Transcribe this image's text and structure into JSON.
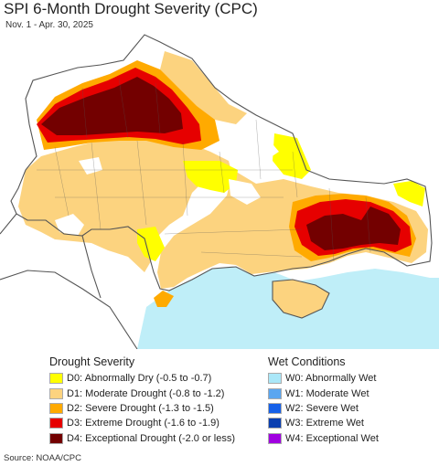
{
  "header": {
    "title": "SPI 6-Month Drought Severity (CPC)",
    "subtitle": "Nov. 1 - Apr. 30, 2025"
  },
  "map": {
    "colors": {
      "sea": "#bfeef8",
      "land_outside": "#ffffff",
      "none": "#ffffff",
      "D0": "#ffff00",
      "D1": "#fcd37f",
      "D2": "#ffaa00",
      "D3": "#e60000",
      "D4": "#730000",
      "border": "#555555"
    }
  },
  "legend": {
    "drought": {
      "heading": "Drought Severity",
      "items": [
        {
          "label": "D0: Abnormally Dry (-0.5 to -0.7)",
          "color": "#ffff00"
        },
        {
          "label": "D1: Moderate Drought (-0.8 to -1.2)",
          "color": "#fcd37f"
        },
        {
          "label": "D2: Severe Drought (-1.3 to -1.5)",
          "color": "#ffaa00"
        },
        {
          "label": "D3: Extreme Drought (-1.6 to -1.9)",
          "color": "#e60000"
        },
        {
          "label": "D4: Exceptional Drought (-2.0 or less)",
          "color": "#730000"
        }
      ]
    },
    "wet": {
      "heading": "Wet Conditions",
      "items": [
        {
          "label": "W0: Abnormally Wet",
          "color": "#aae7f8"
        },
        {
          "label": "W1: Moderate Wet",
          "color": "#5aa6f0"
        },
        {
          "label": "W2: Severe Wet",
          "color": "#1560e8"
        },
        {
          "label": "W3: Extreme Wet",
          "color": "#0a3fb0"
        },
        {
          "label": "W4: Exceptional Wet",
          "color": "#a000e0"
        }
      ]
    }
  },
  "footer": {
    "source": "Source: NOAA/CPC"
  }
}
